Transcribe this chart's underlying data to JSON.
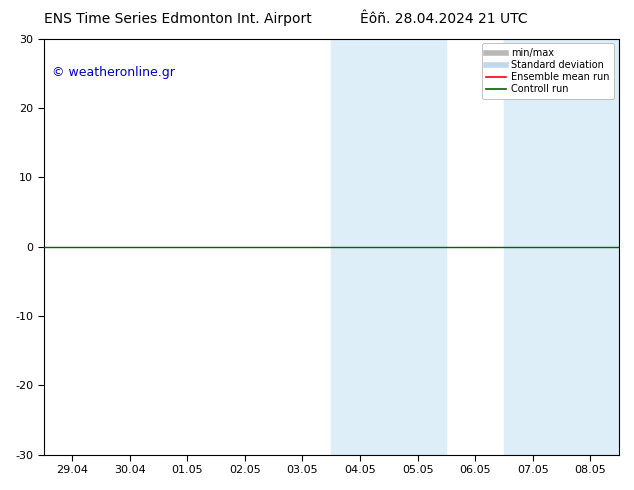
{
  "title_left": "ENS Time Series Edmonton Int. Airport",
  "title_right": "Êôñ. 28.04.2024 21 UTC",
  "watermark": "© weatheronline.gr",
  "x_ticks": [
    "29.04",
    "30.04",
    "01.05",
    "02.05",
    "03.05",
    "04.05",
    "05.05",
    "06.05",
    "07.05",
    "08.05"
  ],
  "ylim": [
    -30,
    30
  ],
  "y_ticks": [
    -30,
    -20,
    -10,
    0,
    10,
    20,
    30
  ],
  "shaded_color": "#ddeef8",
  "zero_line_color": "#006400",
  "background_color": "#ffffff",
  "plot_bg_color": "#ffffff",
  "border_color": "#000000",
  "title_fontsize": 10,
  "tick_fontsize": 8,
  "watermark_color": "#0000cc",
  "watermark_fontsize": 9
}
